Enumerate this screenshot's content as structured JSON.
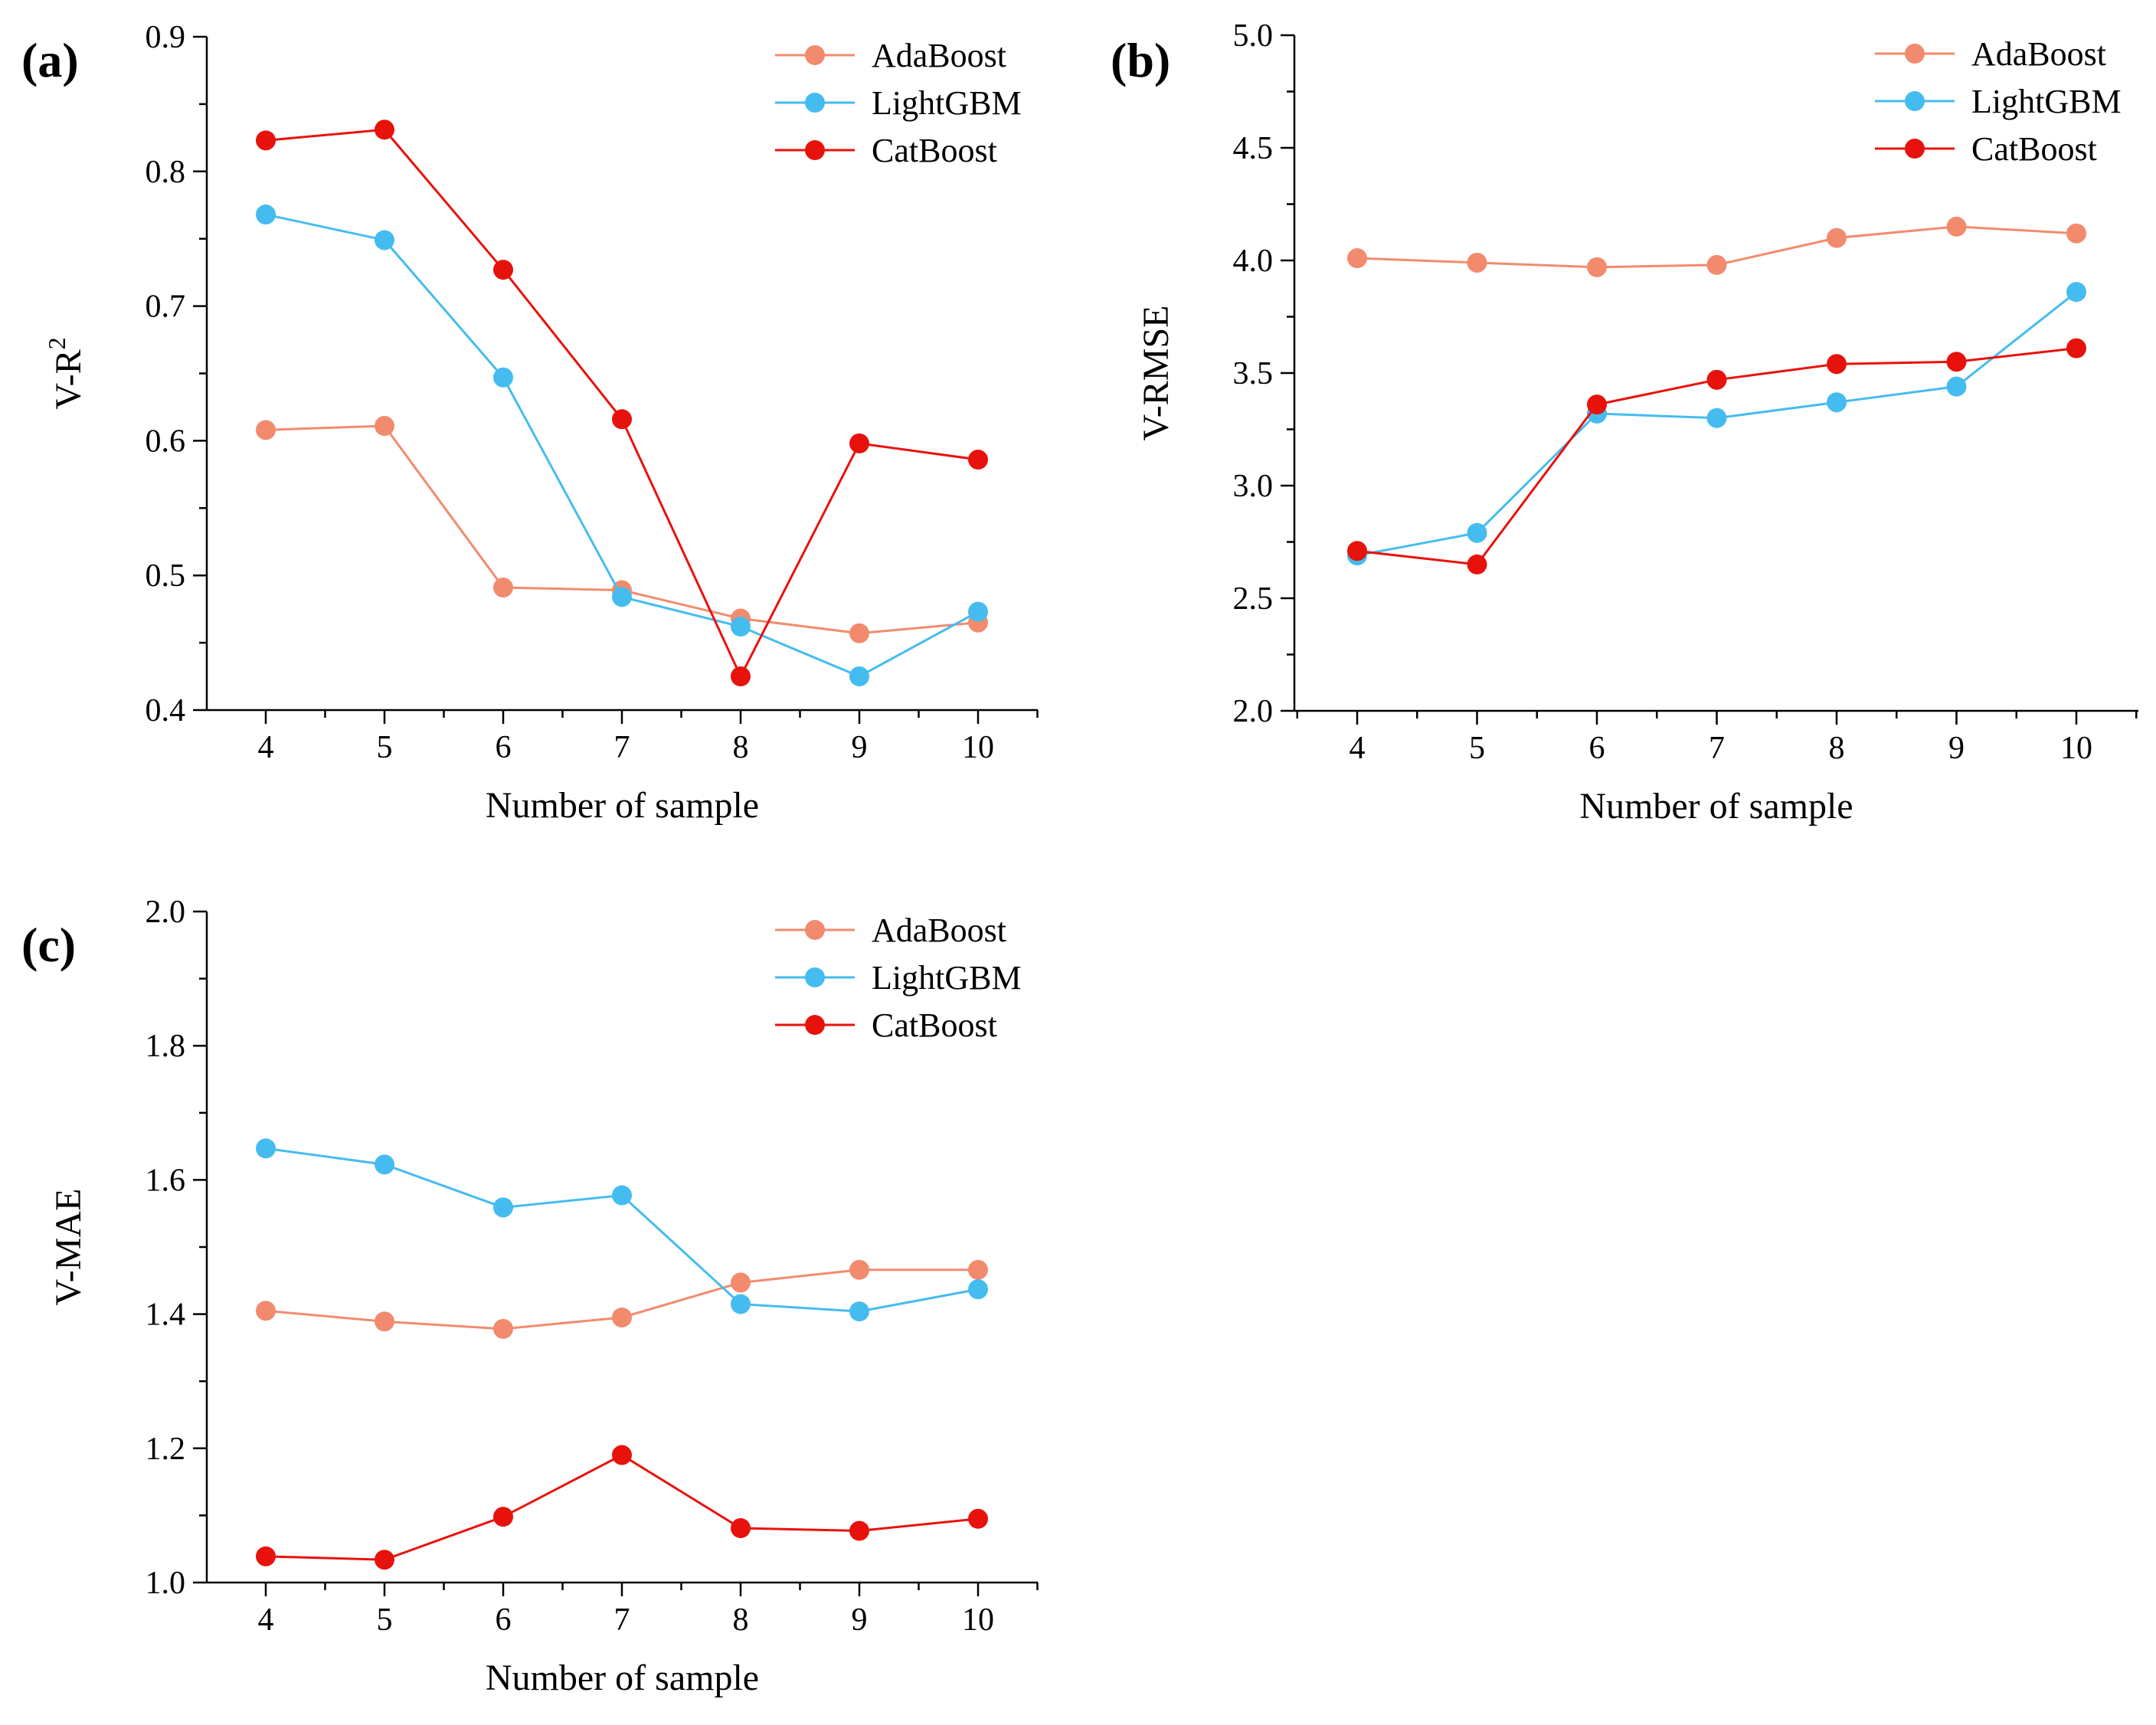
{
  "chart_data": [
    {
      "type": "line",
      "panel": "(a)",
      "xlabel": "Number of sample",
      "ylabel": "V-R",
      "ylabel_sup": "2",
      "x": [
        4,
        5,
        6,
        7,
        8,
        9,
        10
      ],
      "xticks": [
        "4",
        "5",
        "6",
        "7",
        "8",
        "9",
        "10"
      ],
      "ylim": [
        0.4,
        0.9
      ],
      "yticks": [
        "0.4",
        "0.5",
        "0.6",
        "0.7",
        "0.8",
        "0.9"
      ],
      "ytick_values": [
        0.4,
        0.5,
        0.6,
        0.7,
        0.8,
        0.9
      ],
      "legend_position": "top-right",
      "series": [
        {
          "name": "AdaBoost",
          "color": "#F28B6E",
          "values": [
            0.608,
            0.611,
            0.491,
            0.489,
            0.468,
            0.457,
            0.465
          ]
        },
        {
          "name": "LightGBM",
          "color": "#45BCEF",
          "values": [
            0.768,
            0.749,
            0.647,
            0.484,
            0.462,
            0.425,
            0.473
          ]
        },
        {
          "name": "CatBoost",
          "color": "#E8120C",
          "values": [
            0.823,
            0.831,
            0.727,
            0.616,
            0.425,
            0.598,
            0.586
          ]
        }
      ]
    },
    {
      "type": "line",
      "panel": "(b)",
      "xlabel": "Number of sample",
      "ylabel": "V-RMSE",
      "ylabel_sup": "",
      "x": [
        4,
        5,
        6,
        7,
        8,
        9,
        10
      ],
      "xticks": [
        "4",
        "5",
        "6",
        "7",
        "8",
        "9",
        "10"
      ],
      "ylim": [
        2.0,
        5.0
      ],
      "yticks": [
        "2.0",
        "2.5",
        "3.0",
        "3.5",
        "4.0",
        "4.5",
        "5.0"
      ],
      "ytick_values": [
        2.0,
        2.5,
        3.0,
        3.5,
        4.0,
        4.5,
        5.0
      ],
      "legend_position": "top-right",
      "series": [
        {
          "name": "AdaBoost",
          "color": "#F28B6E",
          "values": [
            4.01,
            3.99,
            3.97,
            3.98,
            4.1,
            4.15,
            4.12
          ]
        },
        {
          "name": "LightGBM",
          "color": "#45BCEF",
          "values": [
            2.69,
            2.79,
            3.32,
            3.3,
            3.37,
            3.44,
            3.86
          ]
        },
        {
          "name": "CatBoost",
          "color": "#E8120C",
          "values": [
            2.71,
            2.65,
            3.36,
            3.47,
            3.54,
            3.55,
            3.61
          ]
        }
      ]
    },
    {
      "type": "line",
      "panel": "(c)",
      "xlabel": "Number of sample",
      "ylabel": "V-MAE",
      "ylabel_sup": "",
      "x": [
        4,
        5,
        6,
        7,
        8,
        9,
        10
      ],
      "xticks": [
        "4",
        "5",
        "6",
        "7",
        "8",
        "9",
        "10"
      ],
      "ylim": [
        1.0,
        2.0
      ],
      "yticks": [
        "1.0",
        "1.2",
        "1.4",
        "1.6",
        "1.8",
        "2.0"
      ],
      "ytick_values": [
        1.0,
        1.2,
        1.4,
        1.6,
        1.8,
        2.0
      ],
      "legend_position": "top-right",
      "series": [
        {
          "name": "AdaBoost",
          "color": "#F28B6E",
          "values": [
            1.405,
            1.389,
            1.378,
            1.395,
            1.447,
            1.466,
            1.466
          ]
        },
        {
          "name": "LightGBM",
          "color": "#45BCEF",
          "values": [
            1.647,
            1.623,
            1.559,
            1.577,
            1.415,
            1.404,
            1.437
          ]
        },
        {
          "name": "CatBoost",
          "color": "#E8120C",
          "values": [
            1.039,
            1.034,
            1.098,
            1.19,
            1.081,
            1.077,
            1.095
          ]
        }
      ]
    }
  ]
}
